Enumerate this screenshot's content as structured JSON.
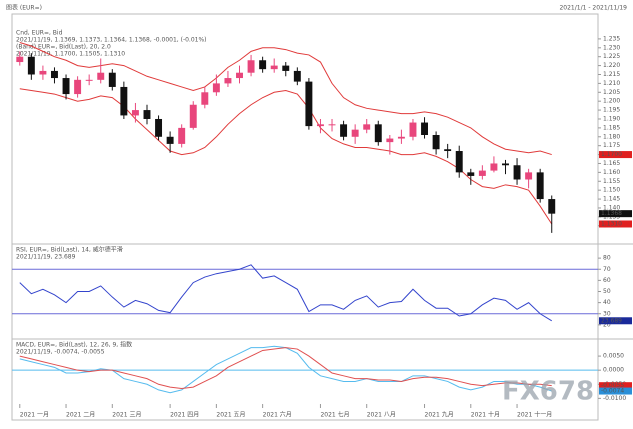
{
  "header": {
    "title": "图表 (EUR=)",
    "range": "2021/1/1 - 2021/11/19"
  },
  "watermark": "FX678",
  "chart_data": [
    {
      "type": "candlestick",
      "title": "Cnd, EUR=, Bid",
      "subtitle": "2021/11/19, 1.1369, 1.1373, 1.1364, 1.1368, -0.0001, (-0.01%)",
      "categories": [
        "2021 一月",
        null,
        null,
        null,
        "2021 二月",
        null,
        null,
        null,
        "2021 三月",
        null,
        null,
        null,
        null,
        "2021 四月",
        null,
        null,
        null,
        "2021 五月",
        null,
        null,
        null,
        "2021 六月",
        null,
        null,
        null,
        null,
        "2021 七月",
        null,
        null,
        null,
        "2021 八月",
        null,
        null,
        null,
        null,
        "2021 九月",
        null,
        null,
        null,
        "2021 十月",
        null,
        null,
        null,
        "2021 十一月",
        null,
        null,
        null
      ],
      "open": [
        1.222,
        1.225,
        1.215,
        1.217,
        1.213,
        1.204,
        1.212,
        1.212,
        1.216,
        1.208,
        1.192,
        1.195,
        1.19,
        1.18,
        1.176,
        1.185,
        1.198,
        1.205,
        1.21,
        1.213,
        1.216,
        1.223,
        1.218,
        1.22,
        1.217,
        1.211,
        1.186,
        1.187,
        1.187,
        1.18,
        1.184,
        1.187,
        1.177,
        1.179,
        1.18,
        1.188,
        1.181,
        1.173,
        1.172,
        1.16,
        1.158,
        1.161,
        1.165,
        1.164,
        1.156,
        1.16,
        1.145
      ],
      "high": [
        1.228,
        1.227,
        1.22,
        1.219,
        1.215,
        1.214,
        1.215,
        1.224,
        1.218,
        1.211,
        1.199,
        1.198,
        1.192,
        1.183,
        1.187,
        1.2,
        1.208,
        1.215,
        1.217,
        1.22,
        1.226,
        1.225,
        1.224,
        1.222,
        1.219,
        1.213,
        1.19,
        1.19,
        1.189,
        1.187,
        1.19,
        1.189,
        1.181,
        1.184,
        1.19,
        1.191,
        1.183,
        1.176,
        1.175,
        1.162,
        1.164,
        1.169,
        1.167,
        1.168,
        1.162,
        1.162,
        1.147
      ],
      "low": [
        1.22,
        1.212,
        1.212,
        1.21,
        1.201,
        1.202,
        1.209,
        1.21,
        1.206,
        1.19,
        1.188,
        1.187,
        1.178,
        1.171,
        1.174,
        1.184,
        1.196,
        1.203,
        1.208,
        1.21,
        1.214,
        1.216,
        1.216,
        1.214,
        1.209,
        1.184,
        1.182,
        1.183,
        1.178,
        1.176,
        1.182,
        1.175,
        1.17,
        1.176,
        1.178,
        1.179,
        1.17,
        1.168,
        1.157,
        1.153,
        1.156,
        1.16,
        1.159,
        1.153,
        1.151,
        1.143,
        1.126
      ],
      "close": [
        1.225,
        1.215,
        1.217,
        1.213,
        1.204,
        1.212,
        1.212,
        1.216,
        1.208,
        1.192,
        1.195,
        1.19,
        1.18,
        1.176,
        1.185,
        1.198,
        1.205,
        1.21,
        1.213,
        1.216,
        1.223,
        1.218,
        1.22,
        1.217,
        1.211,
        1.186,
        1.187,
        1.187,
        1.18,
        1.184,
        1.187,
        1.177,
        1.179,
        1.18,
        1.188,
        1.181,
        1.173,
        1.172,
        1.16,
        1.158,
        1.161,
        1.165,
        1.164,
        1.156,
        1.16,
        1.145,
        1.1368
      ],
      "up_color": "#e8467c",
      "down_color": "#111111",
      "bands": {
        "label": "(Band) EUR=, Bid(Last), 20, 2.0",
        "readout": "2021/11/19, 1.1700, 1.1505, 1.1310",
        "color": "#e03a3a",
        "upper": [
          1.233,
          1.231,
          1.228,
          1.225,
          1.223,
          1.22,
          1.219,
          1.22,
          1.221,
          1.22,
          1.217,
          1.214,
          1.212,
          1.21,
          1.208,
          1.206,
          1.208,
          1.213,
          1.219,
          1.223,
          1.228,
          1.23,
          1.23,
          1.229,
          1.227,
          1.226,
          1.222,
          1.21,
          1.202,
          1.198,
          1.196,
          1.195,
          1.194,
          1.193,
          1.193,
          1.194,
          1.193,
          1.191,
          1.188,
          1.185,
          1.18,
          1.176,
          1.173,
          1.172,
          1.171,
          1.172,
          1.17
        ],
        "lower": [
          1.207,
          1.206,
          1.205,
          1.204,
          1.202,
          1.2,
          1.201,
          1.203,
          1.202,
          1.197,
          1.19,
          1.184,
          1.178,
          1.172,
          1.17,
          1.171,
          1.174,
          1.18,
          1.187,
          1.193,
          1.198,
          1.202,
          1.205,
          1.206,
          1.204,
          1.196,
          1.185,
          1.179,
          1.176,
          1.174,
          1.174,
          1.173,
          1.172,
          1.17,
          1.17,
          1.171,
          1.169,
          1.166,
          1.162,
          1.156,
          1.152,
          1.151,
          1.153,
          1.152,
          1.15,
          1.141,
          1.131
        ]
      },
      "ylim": [
        1.122,
        1.24
      ],
      "yticks": [
        {
          "value": 1.13,
          "label": "1.130"
        },
        1.135,
        {
          "value": 1.14,
          "label": "1.140"
        },
        1.145,
        {
          "value": 1.15,
          "label": "1.150"
        },
        1.155,
        {
          "value": 1.16,
          "label": "1.160"
        },
        1.165,
        {
          "value": 1.17,
          "label": "1.170"
        },
        1.175,
        {
          "value": 1.18,
          "label": "1.180"
        },
        1.185,
        {
          "value": 1.19,
          "label": "1.190"
        },
        1.195,
        {
          "value": 1.2,
          "label": "1.200"
        },
        1.205,
        {
          "value": 1.21,
          "label": "1.210"
        },
        1.215,
        {
          "value": 1.22,
          "label": "1.220"
        },
        1.225,
        {
          "value": 1.23,
          "label": "1.230"
        },
        1.235
      ],
      "markers": [
        {
          "value": 1.17,
          "label": "1.1700",
          "color": "#e02020"
        },
        {
          "value": 1.1368,
          "label": "1.1368",
          "color": "#111111"
        },
        {
          "value": 1.131,
          "label": "1.1310",
          "color": "#e02020"
        }
      ]
    },
    {
      "type": "line",
      "title": "RSI, EUR=, Bid(Last), 14, 威尔德平滑",
      "subtitle": "2021/11/19, 23.689",
      "series": [
        {
          "color": "#3344cc",
          "values": [
            58,
            48,
            52,
            47,
            40,
            50,
            50,
            55,
            45,
            36,
            42,
            39,
            33,
            31,
            45,
            58,
            63,
            66,
            68,
            70,
            74,
            62,
            64,
            58,
            52,
            32,
            38,
            38,
            34,
            42,
            46,
            36,
            40,
            41,
            52,
            42,
            35,
            35,
            28,
            30,
            38,
            44,
            42,
            34,
            40,
            30,
            23.689
          ]
        }
      ],
      "levels": [
        70,
        30
      ],
      "level_color": "#6a6ad8",
      "ylim": [
        10,
        90
      ],
      "yticks": [
        20,
        30,
        40,
        50,
        60,
        70,
        80
      ],
      "markers": [
        {
          "value": 23.689,
          "label": "23.689",
          "color": "#1a2a9a"
        }
      ]
    },
    {
      "type": "line",
      "title": "MACD, EUR=, Bid(Last), 12, 26, 9, 指数",
      "subtitle": "2021/11/19, -0.0074, -0.0055",
      "series": [
        {
          "color": "#55bbee",
          "values": [
            0.004,
            0.003,
            0.002,
            0.001,
            -0.001,
            -0.001,
            -0.0005,
            0.0005,
            0,
            -0.003,
            -0.004,
            -0.005,
            -0.007,
            -0.008,
            -0.007,
            -0.004,
            -0.001,
            0.002,
            0.004,
            0.006,
            0.008,
            0.008,
            0.0085,
            0.008,
            0.006,
            0.001,
            -0.002,
            -0.003,
            -0.004,
            -0.004,
            -0.003,
            -0.004,
            -0.004,
            -0.004,
            -0.002,
            -0.002,
            -0.003,
            -0.004,
            -0.006,
            -0.007,
            -0.006,
            -0.004,
            -0.004,
            -0.005,
            -0.005,
            -0.006,
            -0.0074
          ]
        },
        {
          "color": "#e05050",
          "values": [
            0.005,
            0.004,
            0.003,
            0.002,
            0.001,
            0,
            -0.0005,
            0,
            0,
            -0.001,
            -0.002,
            -0.003,
            -0.005,
            -0.006,
            -0.0065,
            -0.006,
            -0.004,
            -0.002,
            0.001,
            0.003,
            0.005,
            0.007,
            0.0075,
            0.008,
            0.0075,
            0.005,
            0.002,
            -0.001,
            -0.002,
            -0.003,
            -0.003,
            -0.0035,
            -0.0035,
            -0.004,
            -0.003,
            -0.0025,
            -0.0025,
            -0.003,
            -0.004,
            -0.005,
            -0.0055,
            -0.005,
            -0.0045,
            -0.0045,
            -0.005,
            -0.005,
            -0.0055
          ]
        }
      ],
      "levels": [
        0
      ],
      "level_color": "#55bbee",
      "ylim": [
        -0.012,
        0.01
      ],
      "yticks": [
        {
          "value": -0.01,
          "label": "-0.0100"
        },
        {
          "value": -0.005,
          "label": "-0.0050"
        },
        {
          "value": 0,
          "label": "0.0000"
        },
        {
          "value": 0.005,
          "label": "0.0050"
        }
      ],
      "markers": [
        {
          "value": -0.0055,
          "label": "-0.0055",
          "color": "#e02020"
        },
        {
          "value": -0.0074,
          "label": "-0.0074",
          "color": "#2a8fd8"
        }
      ]
    }
  ]
}
